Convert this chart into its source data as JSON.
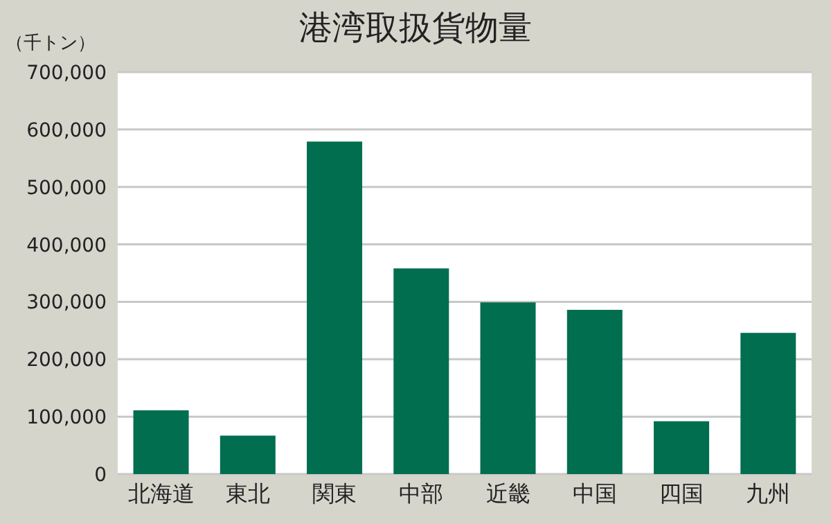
{
  "chart_data": {
    "type": "bar",
    "title": "港湾取扱貨物量",
    "ylabel": "（千トン）",
    "categories": [
      "北海道",
      "東北",
      "関東",
      "中部",
      "近畿",
      "中国",
      "四国",
      "九州"
    ],
    "values": [
      111000,
      67000,
      579000,
      358000,
      299000,
      286000,
      92000,
      246000
    ],
    "color": "#006e4f",
    "ylim": [
      0,
      700000
    ],
    "yticks": [
      0,
      {
        "value": 100000,
        "label": "100,000"
      },
      {
        "value": 200000,
        "label": "200,000"
      },
      {
        "value": 300000,
        "label": "300,000"
      },
      {
        "value": 400000,
        "label": "400,000"
      },
      {
        "value": 500000,
        "label": "500,000"
      },
      {
        "value": 600000,
        "label": "600,000"
      },
      {
        "value": 700000,
        "label": "700,000"
      }
    ],
    "grid": "y"
  }
}
